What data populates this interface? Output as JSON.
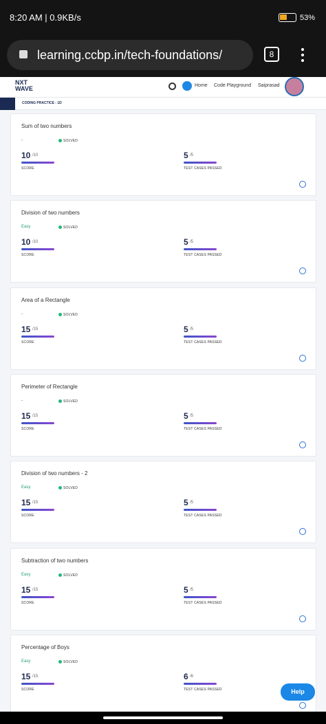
{
  "status_bar": {
    "time": "8:20 AM | 0.9KB/s",
    "battery": "53%"
  },
  "browser": {
    "url": "learning.ccbp.in/tech-foundations/",
    "tab_count": "8"
  },
  "header": {
    "logo": "NXT WAVE",
    "nav": [
      "Home",
      "Code Playground"
    ],
    "user": "Saiprasad",
    "section": "CODING PRACTICE - 1D"
  },
  "cards": [
    {
      "title": "Sum of two numbers",
      "difficulty": "-",
      "status": "SOLVED",
      "score": "10",
      "score_max": "/10",
      "score_label": "SCORE",
      "tests": "5",
      "tests_max": "/5",
      "tests_label": "TEST CASES PASSED"
    },
    {
      "title": "Division of two numbers",
      "difficulty": "Easy",
      "status": "SOLVED",
      "score": "10",
      "score_max": "/10",
      "score_label": "SCORE",
      "tests": "5",
      "tests_max": "/5",
      "tests_label": "TEST CASES PASSED"
    },
    {
      "title": "Area of a Rectangle",
      "difficulty": "-",
      "status": "SOLVED",
      "score": "15",
      "score_max": "/15",
      "score_label": "SCORE",
      "tests": "5",
      "tests_max": "/5",
      "tests_label": "TEST CASES PASSED"
    },
    {
      "title": "Perimeter of Rectangle",
      "difficulty": "-",
      "status": "SOLVED",
      "score": "15",
      "score_max": "/15",
      "score_label": "SCORE",
      "tests": "5",
      "tests_max": "/5",
      "tests_label": "TEST CASES PASSED"
    },
    {
      "title": "Division of two numbers - 2",
      "difficulty": "Easy",
      "status": "SOLVED",
      "score": "15",
      "score_max": "/15",
      "score_label": "SCORE",
      "tests": "5",
      "tests_max": "/5",
      "tests_label": "TEST CASES PASSED"
    },
    {
      "title": "Subtraction of two numbers",
      "difficulty": "Easy",
      "status": "SOLVED",
      "score": "15",
      "score_max": "/15",
      "score_label": "SCORE",
      "tests": "5",
      "tests_max": "/5",
      "tests_label": "TEST CASES PASSED"
    },
    {
      "title": "Percentage of Boys",
      "difficulty": "Easy",
      "status": "SOLVED",
      "score": "15",
      "score_max": "/15",
      "score_label": "SCORE",
      "tests": "6",
      "tests_max": "/6",
      "tests_label": "TEST CASES PASSED"
    }
  ],
  "help": "Help"
}
